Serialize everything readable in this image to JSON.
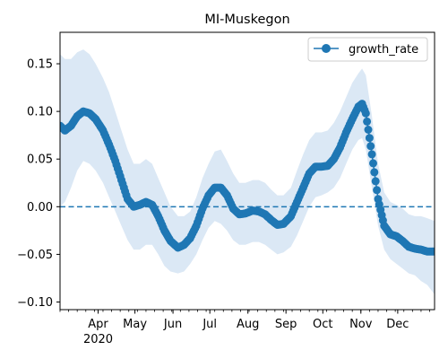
{
  "chart_data": {
    "type": "line",
    "title": "MI-Muskegon",
    "xlabel": "",
    "ylabel": "",
    "x_range": [
      "2020-03-01",
      "2020-12-31"
    ],
    "ylim": [
      -0.108,
      0.183
    ],
    "y_ticks": [
      -0.1,
      -0.05,
      0.0,
      0.05,
      0.1,
      0.15
    ],
    "y_tick_labels": [
      "−0.10",
      "−0.05",
      "0.00",
      "0.05",
      "0.10",
      "0.15"
    ],
    "x_ticks": [
      {
        "date": "2020-04-01",
        "label": "Apr"
      },
      {
        "date": "2020-05-01",
        "label": "May"
      },
      {
        "date": "2020-06-01",
        "label": "Jun"
      },
      {
        "date": "2020-07-01",
        "label": "Jul"
      },
      {
        "date": "2020-08-01",
        "label": "Aug"
      },
      {
        "date": "2020-09-01",
        "label": "Sep"
      },
      {
        "date": "2020-10-01",
        "label": "Oct"
      },
      {
        "date": "2020-11-01",
        "label": "Nov"
      },
      {
        "date": "2020-12-01",
        "label": "Dec"
      }
    ],
    "year_label": "2020",
    "legend": {
      "location": "upper right",
      "entries": [
        "growth_rate"
      ]
    },
    "grid": false,
    "reference_line": {
      "y": 0.0,
      "style": "dashed"
    },
    "colors": {
      "line": "#1f77b4",
      "band": "#dbe8f5",
      "axis": "#000000"
    },
    "series": [
      {
        "name": "growth_rate",
        "x": [
          "2020-03-01",
          "2020-03-05",
          "2020-03-10",
          "2020-03-15",
          "2020-03-20",
          "2020-03-25",
          "2020-03-30",
          "2020-04-05",
          "2020-04-10",
          "2020-04-15",
          "2020-04-20",
          "2020-04-25",
          "2020-04-30",
          "2020-05-05",
          "2020-05-10",
          "2020-05-15",
          "2020-05-20",
          "2020-05-25",
          "2020-05-30",
          "2020-06-05",
          "2020-06-10",
          "2020-06-15",
          "2020-06-20",
          "2020-06-25",
          "2020-06-30",
          "2020-07-05",
          "2020-07-10",
          "2020-07-15",
          "2020-07-20",
          "2020-07-25",
          "2020-07-30",
          "2020-08-05",
          "2020-08-10",
          "2020-08-15",
          "2020-08-20",
          "2020-08-25",
          "2020-08-30",
          "2020-09-05",
          "2020-09-10",
          "2020-09-15",
          "2020-09-20",
          "2020-09-25",
          "2020-09-30",
          "2020-10-05",
          "2020-10-10",
          "2020-10-15",
          "2020-10-20",
          "2020-10-25",
          "2020-10-30",
          "2020-11-02",
          "2020-11-05",
          "2020-11-10",
          "2020-11-15",
          "2020-11-20",
          "2020-11-25",
          "2020-11-30",
          "2020-12-05",
          "2020-12-10",
          "2020-12-15",
          "2020-12-20",
          "2020-12-25",
          "2020-12-31"
        ],
        "y": [
          0.085,
          0.08,
          0.085,
          0.095,
          0.1,
          0.098,
          0.092,
          0.08,
          0.065,
          0.048,
          0.028,
          0.008,
          0.0,
          0.002,
          0.005,
          0.002,
          -0.01,
          -0.025,
          -0.036,
          -0.043,
          -0.04,
          -0.033,
          -0.02,
          -0.002,
          0.012,
          0.02,
          0.02,
          0.012,
          -0.002,
          -0.008,
          -0.007,
          -0.004,
          -0.005,
          -0.008,
          -0.014,
          -0.019,
          -0.018,
          -0.01,
          0.005,
          0.02,
          0.035,
          0.042,
          0.042,
          0.043,
          0.05,
          0.062,
          0.078,
          0.092,
          0.105,
          0.108,
          0.098,
          0.055,
          0.008,
          -0.02,
          -0.029,
          -0.031,
          -0.036,
          -0.042,
          -0.044,
          -0.045,
          -0.047,
          -0.047
        ],
        "lower": [
          0.0,
          0.005,
          0.02,
          0.038,
          0.048,
          0.045,
          0.038,
          0.025,
          0.01,
          -0.005,
          -0.02,
          -0.035,
          -0.045,
          -0.045,
          -0.04,
          -0.04,
          -0.05,
          -0.062,
          -0.068,
          -0.07,
          -0.068,
          -0.06,
          -0.05,
          -0.035,
          -0.022,
          -0.015,
          -0.018,
          -0.025,
          -0.035,
          -0.04,
          -0.04,
          -0.037,
          -0.037,
          -0.04,
          -0.045,
          -0.05,
          -0.048,
          -0.042,
          -0.03,
          -0.015,
          0.0,
          0.01,
          0.012,
          0.015,
          0.02,
          0.03,
          0.045,
          0.06,
          0.07,
          0.072,
          0.06,
          0.02,
          -0.02,
          -0.045,
          -0.055,
          -0.06,
          -0.065,
          -0.07,
          -0.072,
          -0.078,
          -0.082,
          -0.092
        ],
        "upper": [
          0.16,
          0.155,
          0.155,
          0.162,
          0.165,
          0.16,
          0.15,
          0.135,
          0.12,
          0.1,
          0.08,
          0.06,
          0.045,
          0.045,
          0.05,
          0.045,
          0.03,
          0.015,
          0.0,
          -0.01,
          -0.01,
          -0.005,
          0.01,
          0.03,
          0.045,
          0.058,
          0.06,
          0.048,
          0.035,
          0.025,
          0.025,
          0.028,
          0.028,
          0.025,
          0.018,
          0.012,
          0.012,
          0.02,
          0.038,
          0.055,
          0.07,
          0.078,
          0.078,
          0.08,
          0.088,
          0.1,
          0.115,
          0.13,
          0.14,
          0.145,
          0.138,
          0.095,
          0.045,
          0.015,
          0.005,
          0.002,
          -0.002,
          -0.008,
          -0.01,
          -0.01,
          -0.012,
          -0.015
        ]
      }
    ]
  }
}
